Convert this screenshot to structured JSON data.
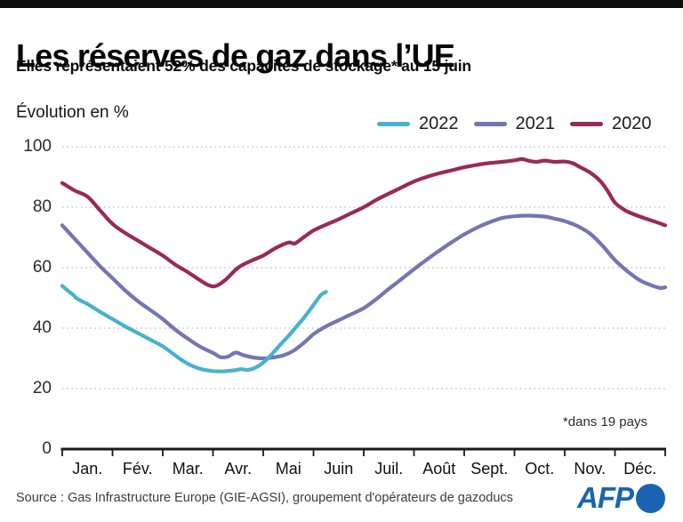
{
  "header": {
    "title": "Les réserves de gaz dans l’UE",
    "subtitle": "Elles représentaient 52% des capacités de stockage* au 15 juin"
  },
  "chart_data": {
    "type": "line",
    "title": "Les réserves de gaz dans l'UE",
    "ylabel": "Évolution en %",
    "ylim": [
      0,
      100
    ],
    "yticks": [
      0,
      20,
      40,
      60,
      80,
      100
    ],
    "categories": [
      "Jan.",
      "Fév.",
      "Mar.",
      "Avr.",
      "Mai",
      "Juin",
      "Juil.",
      "Août",
      "Sept.",
      "Oct.",
      "Nov.",
      "Déc."
    ],
    "grid": "dotted-horizontal",
    "legend_position": "top-right",
    "annotation": "*dans 19 pays",
    "x_unit": "month of year (0 = 1 Jan, 12 = 31 Dec)",
    "series": [
      {
        "name": "2022",
        "color": "#48b1ce",
        "points": [
          [
            0,
            54
          ],
          [
            0.12,
            52.3
          ],
          [
            0.22,
            51
          ],
          [
            0.3,
            49.7
          ],
          [
            0.5,
            48
          ],
          [
            0.75,
            45.4
          ],
          [
            1,
            43
          ],
          [
            1.25,
            40.6
          ],
          [
            1.5,
            38.4
          ],
          [
            1.75,
            36.2
          ],
          [
            2,
            34
          ],
          [
            2.2,
            31.6
          ],
          [
            2.4,
            29.2
          ],
          [
            2.6,
            27.4
          ],
          [
            2.8,
            26.3
          ],
          [
            3,
            25.8
          ],
          [
            3.2,
            25.7
          ],
          [
            3.4,
            26
          ],
          [
            3.55,
            26.4
          ],
          [
            3.7,
            26.2
          ],
          [
            3.85,
            27
          ],
          [
            4,
            28.6
          ],
          [
            4.15,
            31
          ],
          [
            4.3,
            33.8
          ],
          [
            4.5,
            37.4
          ],
          [
            4.65,
            40.3
          ],
          [
            4.8,
            43.2
          ],
          [
            4.95,
            46.5
          ],
          [
            5.05,
            48.8
          ],
          [
            5.15,
            51
          ],
          [
            5.25,
            52
          ]
        ]
      },
      {
        "name": "2021",
        "color": "#7276b2",
        "points": [
          [
            0,
            74
          ],
          [
            0.25,
            69.5
          ],
          [
            0.5,
            65
          ],
          [
            0.75,
            60.5
          ],
          [
            1,
            56.5
          ],
          [
            1.25,
            52.5
          ],
          [
            1.5,
            49
          ],
          [
            1.75,
            46
          ],
          [
            2,
            43
          ],
          [
            2.25,
            39.5
          ],
          [
            2.5,
            36.5
          ],
          [
            2.75,
            33.8
          ],
          [
            3,
            31.8
          ],
          [
            3.15,
            30.4
          ],
          [
            3.3,
            30.6
          ],
          [
            3.45,
            31.9
          ],
          [
            3.6,
            31.1
          ],
          [
            3.8,
            30.3
          ],
          [
            4,
            30
          ],
          [
            4.2,
            30.3
          ],
          [
            4.4,
            31
          ],
          [
            4.6,
            32.5
          ],
          [
            4.8,
            35
          ],
          [
            5,
            38
          ],
          [
            5.25,
            40.6
          ],
          [
            5.5,
            42.6
          ],
          [
            5.75,
            44.6
          ],
          [
            6,
            46.6
          ],
          [
            6.25,
            49.6
          ],
          [
            6.5,
            53
          ],
          [
            6.75,
            56.2
          ],
          [
            7,
            59.5
          ],
          [
            7.25,
            62.6
          ],
          [
            7.5,
            65.6
          ],
          [
            7.75,
            68.4
          ],
          [
            8,
            71
          ],
          [
            8.25,
            73.2
          ],
          [
            8.5,
            75
          ],
          [
            8.75,
            76.4
          ],
          [
            9,
            77
          ],
          [
            9.3,
            77.2
          ],
          [
            9.6,
            76.9
          ],
          [
            9.8,
            76.2
          ],
          [
            10,
            75.4
          ],
          [
            10.25,
            73.8
          ],
          [
            10.5,
            71.3
          ],
          [
            10.75,
            67.3
          ],
          [
            11,
            62.5
          ],
          [
            11.25,
            58.8
          ],
          [
            11.5,
            55.8
          ],
          [
            11.75,
            54
          ],
          [
            11.9,
            53.3
          ],
          [
            12,
            53.5
          ]
        ]
      },
      {
        "name": "2020",
        "color": "#992a57",
        "points": [
          [
            0,
            88
          ],
          [
            0.25,
            85.5
          ],
          [
            0.5,
            83.5
          ],
          [
            0.75,
            79
          ],
          [
            1,
            74.5
          ],
          [
            1.25,
            71.5
          ],
          [
            1.5,
            69
          ],
          [
            1.75,
            66.5
          ],
          [
            2,
            64
          ],
          [
            2.25,
            61
          ],
          [
            2.5,
            58.5
          ],
          [
            2.7,
            56.3
          ],
          [
            2.9,
            54.3
          ],
          [
            3.05,
            53.9
          ],
          [
            3.25,
            56
          ],
          [
            3.5,
            60
          ],
          [
            3.75,
            62.2
          ],
          [
            4,
            64
          ],
          [
            4.25,
            66.5
          ],
          [
            4.5,
            68.3
          ],
          [
            4.63,
            68
          ],
          [
            4.8,
            70
          ],
          [
            5,
            72.3
          ],
          [
            5.25,
            74.2
          ],
          [
            5.5,
            76
          ],
          [
            5.75,
            78
          ],
          [
            6,
            80
          ],
          [
            6.25,
            82.4
          ],
          [
            6.5,
            84.5
          ],
          [
            6.75,
            86.5
          ],
          [
            7,
            88.5
          ],
          [
            7.25,
            90
          ],
          [
            7.5,
            91.2
          ],
          [
            7.75,
            92.2
          ],
          [
            8,
            93.2
          ],
          [
            8.25,
            94
          ],
          [
            8.5,
            94.6
          ],
          [
            8.75,
            95
          ],
          [
            9,
            95.5
          ],
          [
            9.15,
            95.9
          ],
          [
            9.3,
            95.3
          ],
          [
            9.45,
            95
          ],
          [
            9.6,
            95.4
          ],
          [
            9.8,
            95
          ],
          [
            10,
            95.1
          ],
          [
            10.15,
            94.6
          ],
          [
            10.3,
            93.3
          ],
          [
            10.5,
            91.5
          ],
          [
            10.7,
            88.8
          ],
          [
            10.85,
            85.5
          ],
          [
            11,
            81.5
          ],
          [
            11.2,
            79
          ],
          [
            11.4,
            77.5
          ],
          [
            11.6,
            76.3
          ],
          [
            11.8,
            75.2
          ],
          [
            12,
            74
          ]
        ]
      }
    ]
  },
  "footer": {
    "source": "Source : Gas Infrastructure Europe (GIE-AGSI), groupement d'opérateurs de gazoducs",
    "logo_text": "AFP",
    "logo_color": "#1a63b2"
  }
}
